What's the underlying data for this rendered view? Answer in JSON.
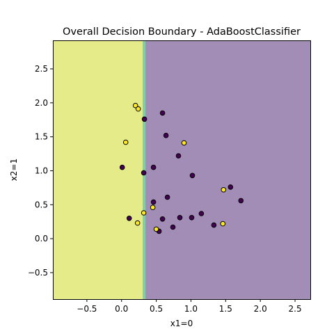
{
  "chart_data": {
    "type": "scatter",
    "title": "Overall Decision Boundary - AdaBoostClassifier",
    "xlabel": "x1=0",
    "ylabel": "x2=1",
    "xlim": [
      -0.99,
      2.72
    ],
    "ylim": [
      -0.89,
      2.92
    ],
    "grid": false,
    "legend": "none",
    "xticks": [
      -0.5,
      0.0,
      0.5,
      1.0,
      1.5,
      2.0,
      2.5
    ],
    "xtick_labels": [
      "−0.5",
      "0.0",
      "0.5",
      "1.0",
      "1.5",
      "2.0",
      "2.5"
    ],
    "yticks": [
      -0.5,
      0.0,
      0.5,
      1.0,
      1.5,
      2.0,
      2.5
    ],
    "ytick_labels": [
      "−0.5",
      "0.0",
      "0.5",
      "1.0",
      "1.5",
      "2.0",
      "2.5"
    ],
    "decision_boundary": {
      "x1_threshold": 0.33,
      "left_region_class": 1,
      "right_region_class": 0,
      "left_region_color": "#e5eb89",
      "right_region_color": "#a28db7",
      "boundary_line_color": "#7fcfa0"
    },
    "series": [
      {
        "class": 0,
        "color": "#440154",
        "points": [
          [
            0.59,
            1.85
          ],
          [
            0.33,
            1.76
          ],
          [
            0.64,
            1.52
          ],
          [
            0.82,
            1.22
          ],
          [
            0.01,
            1.05
          ],
          [
            0.46,
            1.05
          ],
          [
            0.32,
            0.97
          ],
          [
            1.02,
            0.93
          ],
          [
            1.57,
            0.76
          ],
          [
            0.66,
            0.61
          ],
          [
            1.72,
            0.56
          ],
          [
            0.46,
            0.54
          ],
          [
            1.15,
            0.37
          ],
          [
            0.11,
            0.3
          ],
          [
            0.84,
            0.31
          ],
          [
            1.01,
            0.31
          ],
          [
            0.59,
            0.29
          ],
          [
            0.74,
            0.17
          ],
          [
            1.33,
            0.2
          ],
          [
            0.54,
            0.11
          ]
        ]
      },
      {
        "class": 1,
        "color": "#fde725",
        "points": [
          [
            0.2,
            1.96
          ],
          [
            0.24,
            1.91
          ],
          [
            0.06,
            1.42
          ],
          [
            0.9,
            1.41
          ],
          [
            1.47,
            0.72
          ],
          [
            0.45,
            0.46
          ],
          [
            0.32,
            0.38
          ],
          [
            1.46,
            0.22
          ],
          [
            0.23,
            0.23
          ],
          [
            0.5,
            0.14
          ]
        ]
      }
    ]
  }
}
